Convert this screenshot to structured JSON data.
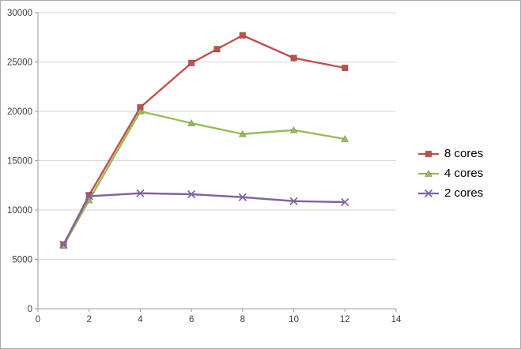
{
  "chart_data": {
    "type": "line",
    "title": "",
    "xlabel": "",
    "ylabel": "",
    "xlim": [
      0,
      14
    ],
    "ylim": [
      0,
      30000
    ],
    "xticks": [
      0,
      2,
      4,
      6,
      8,
      10,
      12,
      14
    ],
    "yticks": [
      0,
      5000,
      10000,
      15000,
      20000,
      25000,
      30000
    ],
    "grid": "horizontal",
    "legend_position": "right",
    "series": [
      {
        "name": "8 cores",
        "color": "#C0504D",
        "marker": "square",
        "points": [
          [
            1,
            6500
          ],
          [
            2,
            11500
          ],
          [
            4,
            20400
          ],
          [
            6,
            24900
          ],
          [
            7,
            26300
          ],
          [
            8,
            27700
          ],
          [
            10,
            25400
          ],
          [
            12,
            24400
          ]
        ]
      },
      {
        "name": "4 cores",
        "color": "#9BBB59",
        "marker": "triangle",
        "points": [
          [
            1,
            6400
          ],
          [
            2,
            11000
          ],
          [
            4,
            20000
          ],
          [
            6,
            18800
          ],
          [
            8,
            17700
          ],
          [
            10,
            18100
          ],
          [
            12,
            17200
          ]
        ]
      },
      {
        "name": "2 cores",
        "color": "#8064A2",
        "marker": "x",
        "points": [
          [
            1,
            6500
          ],
          [
            2,
            11400
          ],
          [
            4,
            11700
          ],
          [
            6,
            11600
          ],
          [
            8,
            11300
          ],
          [
            10,
            10900
          ],
          [
            12,
            10800
          ]
        ]
      }
    ]
  },
  "colors": {
    "background": "#FFFFFF",
    "border": "#ABABAB",
    "gridline": "#D6D6D6",
    "axis": "#9B9B9B",
    "tick_label": "#404040",
    "legend_text": "#000000"
  }
}
